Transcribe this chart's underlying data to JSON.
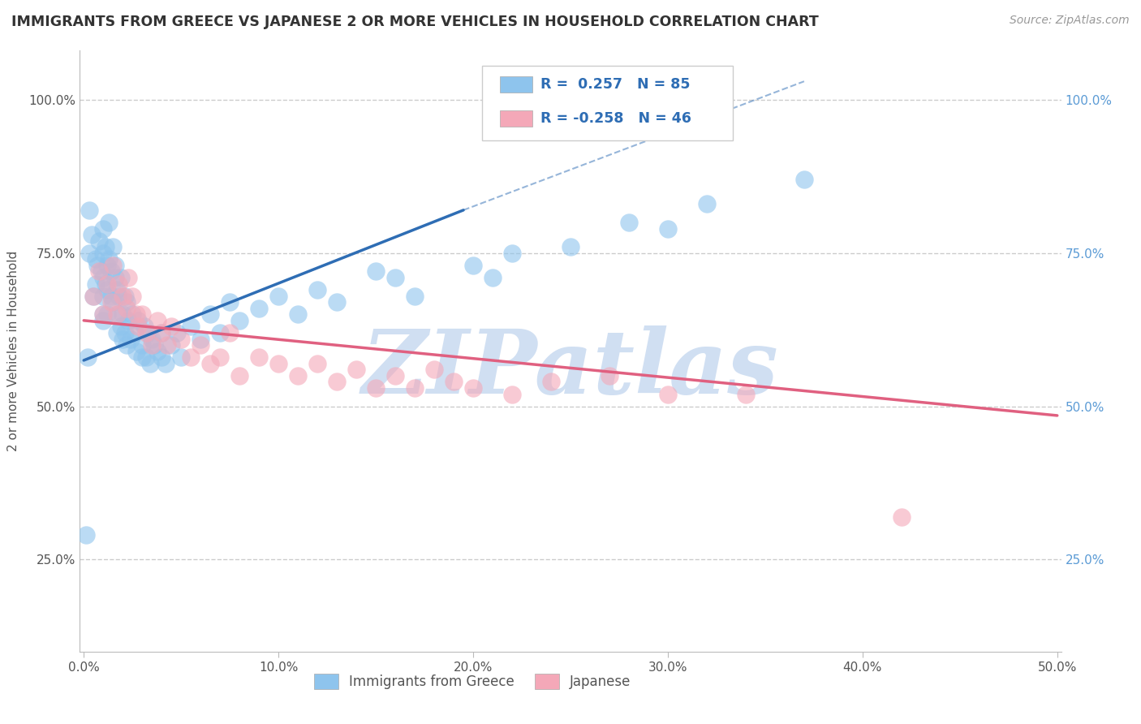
{
  "title": "IMMIGRANTS FROM GREECE VS JAPANESE 2 OR MORE VEHICLES IN HOUSEHOLD CORRELATION CHART",
  "source": "Source: ZipAtlas.com",
  "ylabel": "2 or more Vehicles in Household",
  "xlim": [
    -0.002,
    0.502
  ],
  "ylim": [
    0.1,
    1.08
  ],
  "xtick_labels": [
    "0.0%",
    "10.0%",
    "20.0%",
    "30.0%",
    "40.0%",
    "50.0%"
  ],
  "xtick_values": [
    0.0,
    0.1,
    0.2,
    0.3,
    0.4,
    0.5
  ],
  "ytick_labels": [
    "25.0%",
    "50.0%",
    "75.0%",
    "100.0%"
  ],
  "ytick_values": [
    0.25,
    0.5,
    0.75,
    1.0
  ],
  "legend_labels": [
    "Immigrants from Greece",
    "Japanese"
  ],
  "legend_R": [
    0.257,
    -0.258
  ],
  "legend_N": [
    85,
    46
  ],
  "blue_color": "#8EC4ED",
  "pink_color": "#F4A8B8",
  "blue_line_color": "#2E6DB4",
  "pink_line_color": "#E06080",
  "watermark": "ZIPatlas",
  "watermark_color": "#D0DFF2",
  "right_tick_color": "#5B9BD5",
  "blue_scatter_x": [
    0.001,
    0.002,
    0.003,
    0.003,
    0.004,
    0.005,
    0.006,
    0.006,
    0.007,
    0.008,
    0.009,
    0.01,
    0.01,
    0.01,
    0.01,
    0.01,
    0.01,
    0.011,
    0.011,
    0.012,
    0.012,
    0.012,
    0.013,
    0.013,
    0.014,
    0.014,
    0.015,
    0.015,
    0.016,
    0.016,
    0.017,
    0.017,
    0.018,
    0.018,
    0.019,
    0.019,
    0.02,
    0.02,
    0.021,
    0.021,
    0.022,
    0.022,
    0.023,
    0.024,
    0.025,
    0.026,
    0.027,
    0.028,
    0.03,
    0.03,
    0.031,
    0.032,
    0.033,
    0.034,
    0.035,
    0.036,
    0.038,
    0.04,
    0.04,
    0.042,
    0.045,
    0.048,
    0.05,
    0.055,
    0.06,
    0.065,
    0.07,
    0.075,
    0.08,
    0.09,
    0.1,
    0.11,
    0.12,
    0.13,
    0.15,
    0.16,
    0.17,
    0.2,
    0.21,
    0.22,
    0.25,
    0.28,
    0.3,
    0.32,
    0.37
  ],
  "blue_scatter_y": [
    0.29,
    0.58,
    0.75,
    0.82,
    0.78,
    0.68,
    0.7,
    0.74,
    0.73,
    0.77,
    0.72,
    0.79,
    0.65,
    0.71,
    0.75,
    0.68,
    0.64,
    0.7,
    0.76,
    0.73,
    0.69,
    0.65,
    0.74,
    0.8,
    0.68,
    0.72,
    0.67,
    0.76,
    0.73,
    0.71,
    0.69,
    0.62,
    0.65,
    0.68,
    0.63,
    0.71,
    0.65,
    0.61,
    0.68,
    0.62,
    0.67,
    0.6,
    0.64,
    0.61,
    0.65,
    0.62,
    0.59,
    0.64,
    0.6,
    0.58,
    0.63,
    0.58,
    0.62,
    0.57,
    0.61,
    0.6,
    0.59,
    0.58,
    0.62,
    0.57,
    0.6,
    0.62,
    0.58,
    0.63,
    0.61,
    0.65,
    0.62,
    0.67,
    0.64,
    0.66,
    0.68,
    0.65,
    0.69,
    0.67,
    0.72,
    0.71,
    0.68,
    0.73,
    0.71,
    0.75,
    0.76,
    0.8,
    0.79,
    0.83,
    0.87
  ],
  "pink_scatter_x": [
    0.005,
    0.008,
    0.01,
    0.012,
    0.014,
    0.015,
    0.017,
    0.018,
    0.02,
    0.022,
    0.023,
    0.025,
    0.027,
    0.028,
    0.03,
    0.032,
    0.035,
    0.038,
    0.04,
    0.043,
    0.045,
    0.05,
    0.055,
    0.06,
    0.065,
    0.07,
    0.075,
    0.08,
    0.09,
    0.1,
    0.11,
    0.12,
    0.13,
    0.14,
    0.15,
    0.16,
    0.17,
    0.18,
    0.19,
    0.2,
    0.22,
    0.24,
    0.27,
    0.3,
    0.34,
    0.42
  ],
  "pink_scatter_y": [
    0.68,
    0.72,
    0.65,
    0.7,
    0.67,
    0.73,
    0.65,
    0.7,
    0.68,
    0.66,
    0.71,
    0.68,
    0.65,
    0.63,
    0.65,
    0.62,
    0.6,
    0.64,
    0.62,
    0.6,
    0.63,
    0.61,
    0.58,
    0.6,
    0.57,
    0.58,
    0.62,
    0.55,
    0.58,
    0.57,
    0.55,
    0.57,
    0.54,
    0.56,
    0.53,
    0.55,
    0.53,
    0.56,
    0.54,
    0.53,
    0.52,
    0.54,
    0.55,
    0.52,
    0.52,
    0.32
  ],
  "blue_line_x": [
    0.0,
    0.195
  ],
  "blue_line_y": [
    0.575,
    0.82
  ],
  "pink_line_x": [
    0.0,
    0.5
  ],
  "pink_line_y": [
    0.64,
    0.485
  ]
}
